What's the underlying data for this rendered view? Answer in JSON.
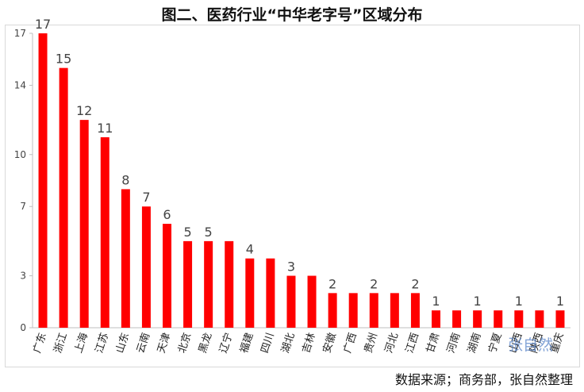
{
  "chart_data": {
    "type": "bar",
    "title": "图二、医药行业“中华老字号”区域分布",
    "categories": [
      "广东",
      "浙江",
      "上海",
      "江苏",
      "山东",
      "云南",
      "天津",
      "北京",
      "黑龙",
      "辽宁",
      "福建",
      "四川",
      "湖北",
      "吉林",
      "安徽",
      "广西",
      "贵州",
      "河北",
      "江西",
      "甘肃",
      "河南",
      "湖南",
      "宁夏",
      "山西",
      "陕西",
      "重庆"
    ],
    "values": [
      17,
      15,
      12,
      11,
      8,
      7,
      6,
      5,
      5,
      5,
      4,
      4,
      3,
      3,
      2,
      2,
      2,
      2,
      2,
      1,
      1,
      1,
      1,
      1,
      1,
      1
    ],
    "data_labels": [
      "17",
      "15",
      "12",
      "11",
      "8",
      "7",
      "6",
      "5",
      "5",
      "",
      "4",
      "",
      "3",
      "",
      "2",
      "",
      "2",
      "",
      "2",
      "1",
      "",
      "1",
      "",
      "1",
      "",
      "1"
    ],
    "ylim": [
      0,
      17
    ],
    "yticks": [
      0,
      3,
      7,
      10,
      14,
      17
    ],
    "xlabel": "",
    "ylabel": "",
    "bar_color": "#ff0000",
    "grid": false,
    "legend": "none"
  },
  "source_note": "数据来源；商务部，张自然整理",
  "watermark": "张自然"
}
